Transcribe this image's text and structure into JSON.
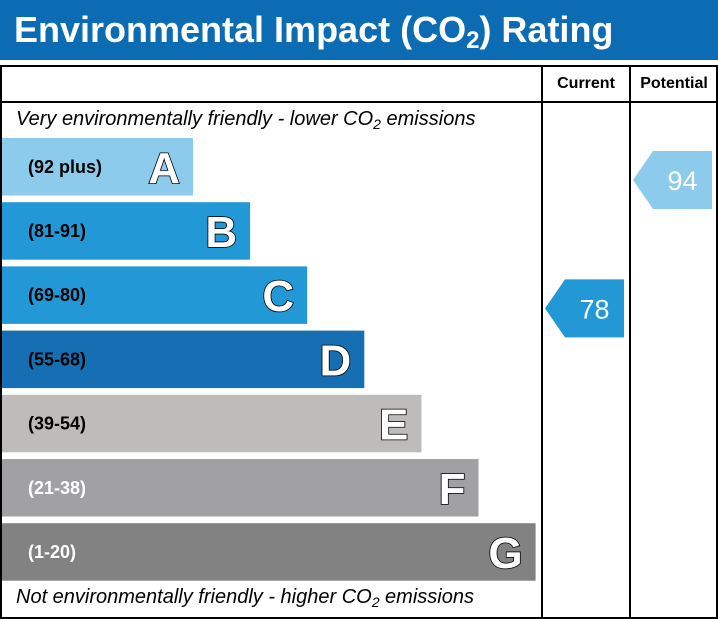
{
  "header": {
    "title_prefix": "Environmental Impact (CO",
    "title_sub": "2",
    "title_suffix": ") Rating",
    "background_color": "#0b6cb3"
  },
  "columns": {
    "current": "Current",
    "potential": "Potential"
  },
  "notes": {
    "top_prefix": "Very environmentally friendly - lower CO",
    "top_sub": "2",
    "top_suffix": " emissions",
    "bottom_prefix": "Not environmentally friendly - higher CO",
    "bottom_sub": "2",
    "bottom_suffix": " emissions"
  },
  "chart_data": {
    "type": "bar",
    "title": "Environmental Impact (CO2) Rating",
    "bands": [
      {
        "letter": "A",
        "range": "(92 plus)",
        "color": "#8ccbeb",
        "range_text_color": "#000000"
      },
      {
        "letter": "B",
        "range": "(81-91)",
        "color": "#2398d6",
        "range_text_color": "#000000"
      },
      {
        "letter": "C",
        "range": "(69-80)",
        "color": "#2398d6",
        "range_text_color": "#000000"
      },
      {
        "letter": "D",
        "range": "(55-68)",
        "color": "#176fb3",
        "range_text_color": "#000000"
      },
      {
        "letter": "E",
        "range": "(39-54)",
        "color": "#bebcbb",
        "range_text_color": "#000000"
      },
      {
        "letter": "F",
        "range": "(21-38)",
        "color": "#a1a1a3",
        "range_text_color": "#ffffff"
      },
      {
        "letter": "G",
        "range": "(1-20)",
        "color": "#828282",
        "range_text_color": "#ffffff"
      }
    ],
    "current": {
      "value": 78,
      "band": "C",
      "color": "#2398d6"
    },
    "potential": {
      "value": 94,
      "band": "A",
      "color": "#8ccbeb"
    }
  }
}
